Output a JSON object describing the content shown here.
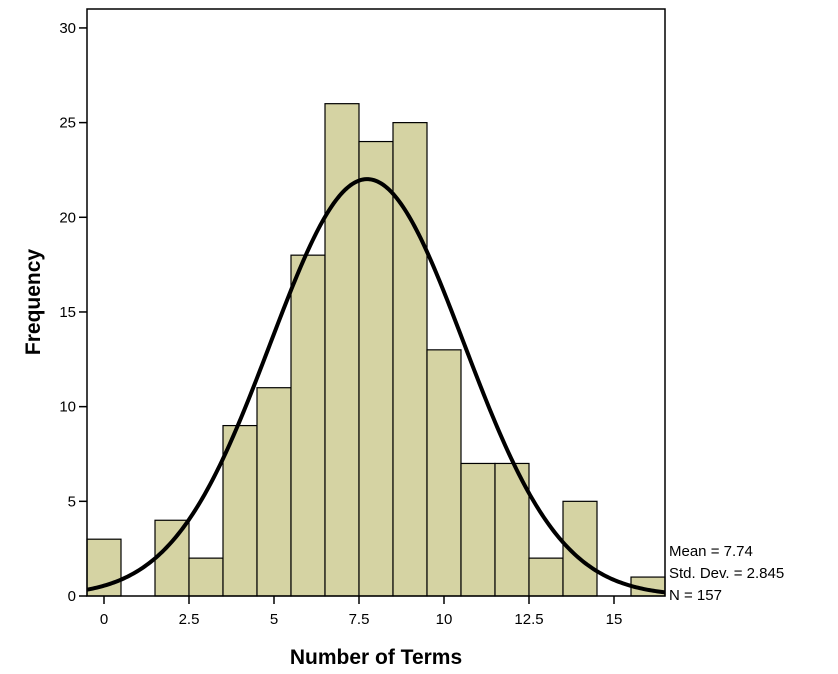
{
  "chart_data": {
    "type": "bar",
    "subtype": "histogram",
    "xlabel": "Number of Terms",
    "ylabel": "Frequency",
    "xlim": [
      -0.5,
      16.5
    ],
    "ylim": [
      0,
      31
    ],
    "xticks": [
      0,
      2.5,
      5,
      7.5,
      10,
      12.5,
      15
    ],
    "xtick_labels": [
      "0",
      "2.5",
      "5",
      "7.5",
      "10",
      "12.5",
      "15"
    ],
    "yticks": [
      0,
      5,
      10,
      15,
      20,
      25,
      30
    ],
    "ytick_labels": [
      "0",
      "5",
      "10",
      "15",
      "20",
      "25",
      "30"
    ],
    "bin_width": 1,
    "bins": [
      0,
      1,
      2,
      3,
      4,
      5,
      6,
      7,
      8,
      9,
      10,
      11,
      12,
      13,
      14,
      15,
      16
    ],
    "values": [
      3,
      0,
      4,
      2,
      9,
      11,
      18,
      26,
      24,
      25,
      13,
      7,
      7,
      2,
      5,
      0,
      1
    ],
    "bar_color": "#d5d3a3",
    "normal_curve": {
      "mean": 7.74,
      "std": 2.845,
      "n": 157
    },
    "stats": {
      "mean_label": "Mean = 7.74",
      "std_label": "Std. Dev. = 2.845",
      "n_label": "N = 157"
    },
    "grid": false,
    "legend": false
  }
}
